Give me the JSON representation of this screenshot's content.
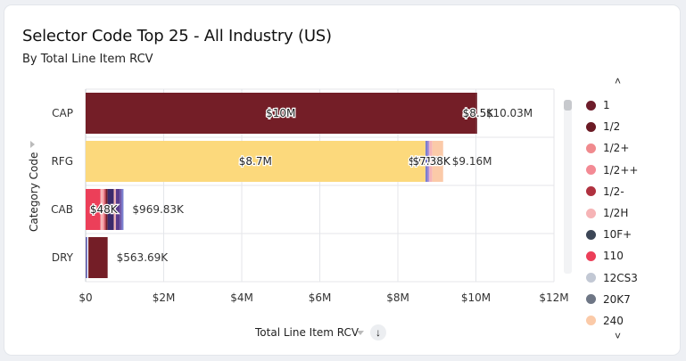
{
  "card": {
    "title": "Selector Code Top 25 - All Industry (US)",
    "subtitle": "By Total Line Item RCV"
  },
  "axis": {
    "y_title": "Category Code",
    "x_title": "Total Line Item RCV",
    "sort_icon": "↓"
  },
  "legend": {
    "up_label": "˄",
    "down_label": "˅",
    "items": [
      {
        "label": "1",
        "color": "#6e1d2b"
      },
      {
        "label": "1/2",
        "color": "#6b1a24"
      },
      {
        "label": "1/2+",
        "color": "#f08a8e"
      },
      {
        "label": "1/2++",
        "color": "#f38a94"
      },
      {
        "label": "1/2-",
        "color": "#b0313f"
      },
      {
        "label": "1/2H",
        "color": "#f6b4b6"
      },
      {
        "label": "10F+",
        "color": "#3c4656"
      },
      {
        "label": "110",
        "color": "#ec3f59"
      },
      {
        "label": "12CS3",
        "color": "#c2c8d4"
      },
      {
        "label": "20K7",
        "color": "#6e7685"
      },
      {
        "label": "240",
        "color": "#fbcaa8"
      }
    ]
  },
  "chart_data": {
    "type": "bar",
    "orientation": "horizontal",
    "stacked": true,
    "title": "Selector Code Top 25 - All Industry (US)",
    "subtitle": "By Total Line Item RCV",
    "xlabel": "Total Line Item RCV",
    "ylabel": "Category Code",
    "xlim": [
      0,
      12000000
    ],
    "xticks": [
      0,
      2000000,
      4000000,
      6000000,
      8000000,
      10000000,
      12000000
    ],
    "xtick_labels": [
      "$0",
      "$2M",
      "$4M",
      "$6M",
      "$8M",
      "$10M",
      "$12M"
    ],
    "grid": true,
    "legend_position": "right",
    "categories": [
      "CAP",
      "RFG",
      "CAB",
      "DRY"
    ],
    "totals": [
      10030000,
      9160000,
      969830,
      563690
    ],
    "total_labels": [
      "$10.03M",
      "$9.16M",
      "$969.83K",
      "$563.69K"
    ],
    "bars": [
      {
        "category": "CAP",
        "segments": [
          {
            "value": 10000000,
            "color": "#741e27",
            "label": "$10M"
          },
          {
            "value": 8500,
            "color": "#5a1a20",
            "label": "$8.5K"
          },
          {
            "value": 21500,
            "color": "#6b1a24",
            "label": ""
          }
        ]
      },
      {
        "category": "RFG",
        "segments": [
          {
            "value": 8700000,
            "color": "#fcd97c",
            "label": "$8.7M"
          },
          {
            "value": 7120,
            "color": "#f7d277",
            "label": "$7.12K"
          },
          {
            "value": 60000,
            "color": "#7a7fd0",
            "label": ""
          },
          {
            "value": 40000,
            "color": "#b38fd6",
            "label": ""
          },
          {
            "value": 7380,
            "color": "#c6a2e0",
            "label": "$7.38K"
          },
          {
            "value": 70000,
            "color": "#f6b4b6",
            "label": ""
          },
          {
            "value": 275500,
            "color": "#fbcaa8",
            "label": ""
          }
        ]
      },
      {
        "category": "CAB",
        "segments": [
          {
            "value": 380000,
            "color": "#ec3f59",
            "label": ""
          },
          {
            "value": 60000,
            "color": "#f6b4b6",
            "label": ""
          },
          {
            "value": 48000,
            "color": "#f38a94",
            "label": "$48K"
          },
          {
            "value": 35000,
            "color": "#b0313f",
            "label": ""
          },
          {
            "value": 40000,
            "color": "#6e1d2b",
            "label": ""
          },
          {
            "value": 160000,
            "color": "#3b2a6b",
            "label": ""
          },
          {
            "value": 50000,
            "color": "#f6b4b6",
            "label": ""
          },
          {
            "value": 100000,
            "color": "#5a3b8c",
            "label": ""
          },
          {
            "value": 50000,
            "color": "#6b4fa3",
            "label": ""
          },
          {
            "value": 46830,
            "color": "#7a7fd0",
            "label": ""
          }
        ]
      },
      {
        "category": "DRY",
        "segments": [
          {
            "value": 15000,
            "color": "#3b2a6b",
            "label": ""
          },
          {
            "value": 30000,
            "color": "#7a7fd0",
            "label": ""
          },
          {
            "value": 25000,
            "color": "#ffffff",
            "label": ""
          },
          {
            "value": 493690,
            "color": "#741e27",
            "label": ""
          }
        ]
      }
    ]
  }
}
